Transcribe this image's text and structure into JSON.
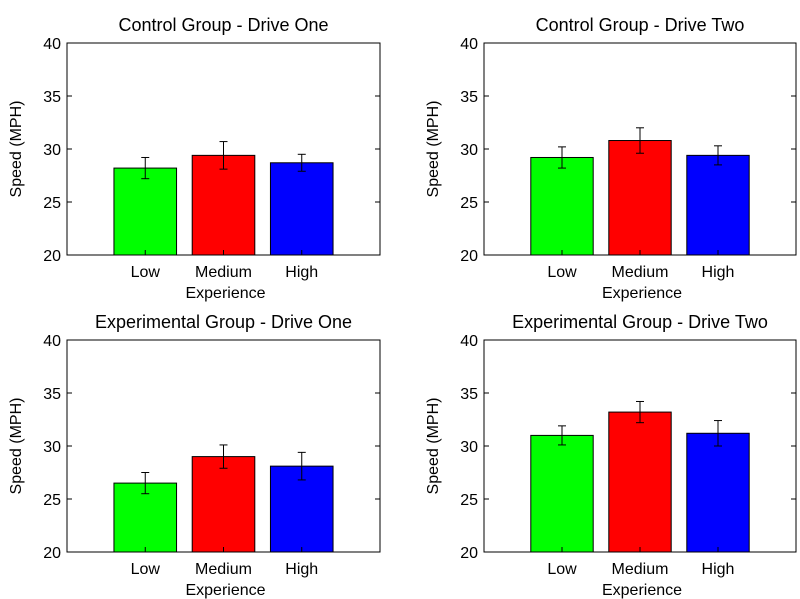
{
  "chart_data": [
    {
      "type": "bar",
      "title": "Control Group - Drive One",
      "xlabel": "Experience",
      "ylabel": "Speed (MPH)",
      "ylim": [
        20,
        40
      ],
      "yticks": [
        "20",
        "25",
        "30",
        "35",
        "40"
      ],
      "categories": [
        "Low",
        "Medium",
        "High"
      ],
      "values": [
        28.2,
        29.4,
        28.7
      ],
      "errors": [
        1.0,
        1.3,
        0.8
      ],
      "colors": [
        "#00ff00",
        "#ff0000",
        "#0000ff"
      ],
      "grid": false
    },
    {
      "type": "bar",
      "title": "Control Group - Drive Two",
      "xlabel": "Experience",
      "ylabel": "Speed (MPH)",
      "ylim": [
        20,
        40
      ],
      "yticks": [
        "20",
        "25",
        "30",
        "35",
        "40"
      ],
      "categories": [
        "Low",
        "Medium",
        "High"
      ],
      "values": [
        29.2,
        30.8,
        29.4
      ],
      "errors": [
        1.0,
        1.2,
        0.9
      ],
      "colors": [
        "#00ff00",
        "#ff0000",
        "#0000ff"
      ],
      "grid": false
    },
    {
      "type": "bar",
      "title": "Experimental Group - Drive One",
      "xlabel": "Experience",
      "ylabel": "Speed (MPH)",
      "ylim": [
        20,
        40
      ],
      "yticks": [
        "20",
        "25",
        "30",
        "35",
        "40"
      ],
      "categories": [
        "Low",
        "Medium",
        "High"
      ],
      "values": [
        26.5,
        29.0,
        28.1
      ],
      "errors": [
        1.0,
        1.1,
        1.3
      ],
      "colors": [
        "#00ff00",
        "#ff0000",
        "#0000ff"
      ],
      "grid": false
    },
    {
      "type": "bar",
      "title": "Experimental Group - Drive Two",
      "xlabel": "Experience",
      "ylabel": "Speed (MPH)",
      "ylim": [
        20,
        40
      ],
      "yticks": [
        "20",
        "25",
        "30",
        "35",
        "40"
      ],
      "categories": [
        "Low",
        "Medium",
        "High"
      ],
      "values": [
        31.0,
        33.2,
        31.2
      ],
      "errors": [
        0.9,
        1.0,
        1.2
      ],
      "colors": [
        "#00ff00",
        "#ff0000",
        "#0000ff"
      ],
      "grid": false
    }
  ]
}
